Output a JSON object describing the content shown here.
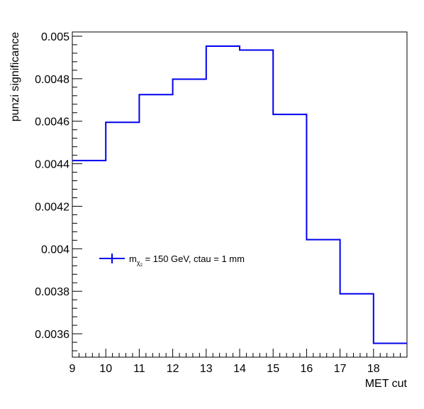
{
  "chart_data": {
    "type": "line",
    "step": true,
    "xlabel": "MET cut",
    "ylabel": "punzi significance",
    "xlim": [
      9,
      19
    ],
    "ylim": [
      0.00349,
      0.00502
    ],
    "x_ticks": [
      9,
      10,
      11,
      12,
      13,
      14,
      15,
      16,
      17,
      18
    ],
    "x_tick_labels": [
      "9",
      "10",
      "11",
      "12",
      "13",
      "14",
      "15",
      "16",
      "17",
      "18"
    ],
    "y_ticks": [
      0.0036,
      0.0038,
      0.004,
      0.0042,
      0.0044,
      0.0046,
      0.0048,
      0.005
    ],
    "y_tick_labels": [
      "0.0036",
      "0.0038",
      "0.004",
      "0.0042",
      "0.0044",
      "0.0046",
      "0.0048",
      "0.005"
    ],
    "bin_edges": [
      9,
      10,
      11,
      12,
      13,
      14,
      15,
      16,
      17,
      18,
      19
    ],
    "series": [
      {
        "legend_mass_label": "m",
        "legend_subscript": "χ",
        "legend_subsubscript": "2",
        "legend_rest": " = 150 GeV, ctau = 1 mm",
        "color": "#0000ee",
        "values": [
          0.004415,
          0.004595,
          0.004725,
          0.004798,
          0.004953,
          0.004935,
          0.004632,
          0.004043,
          0.003788,
          0.003555
        ]
      }
    ],
    "legend_position": "center-left",
    "grid": false
  }
}
